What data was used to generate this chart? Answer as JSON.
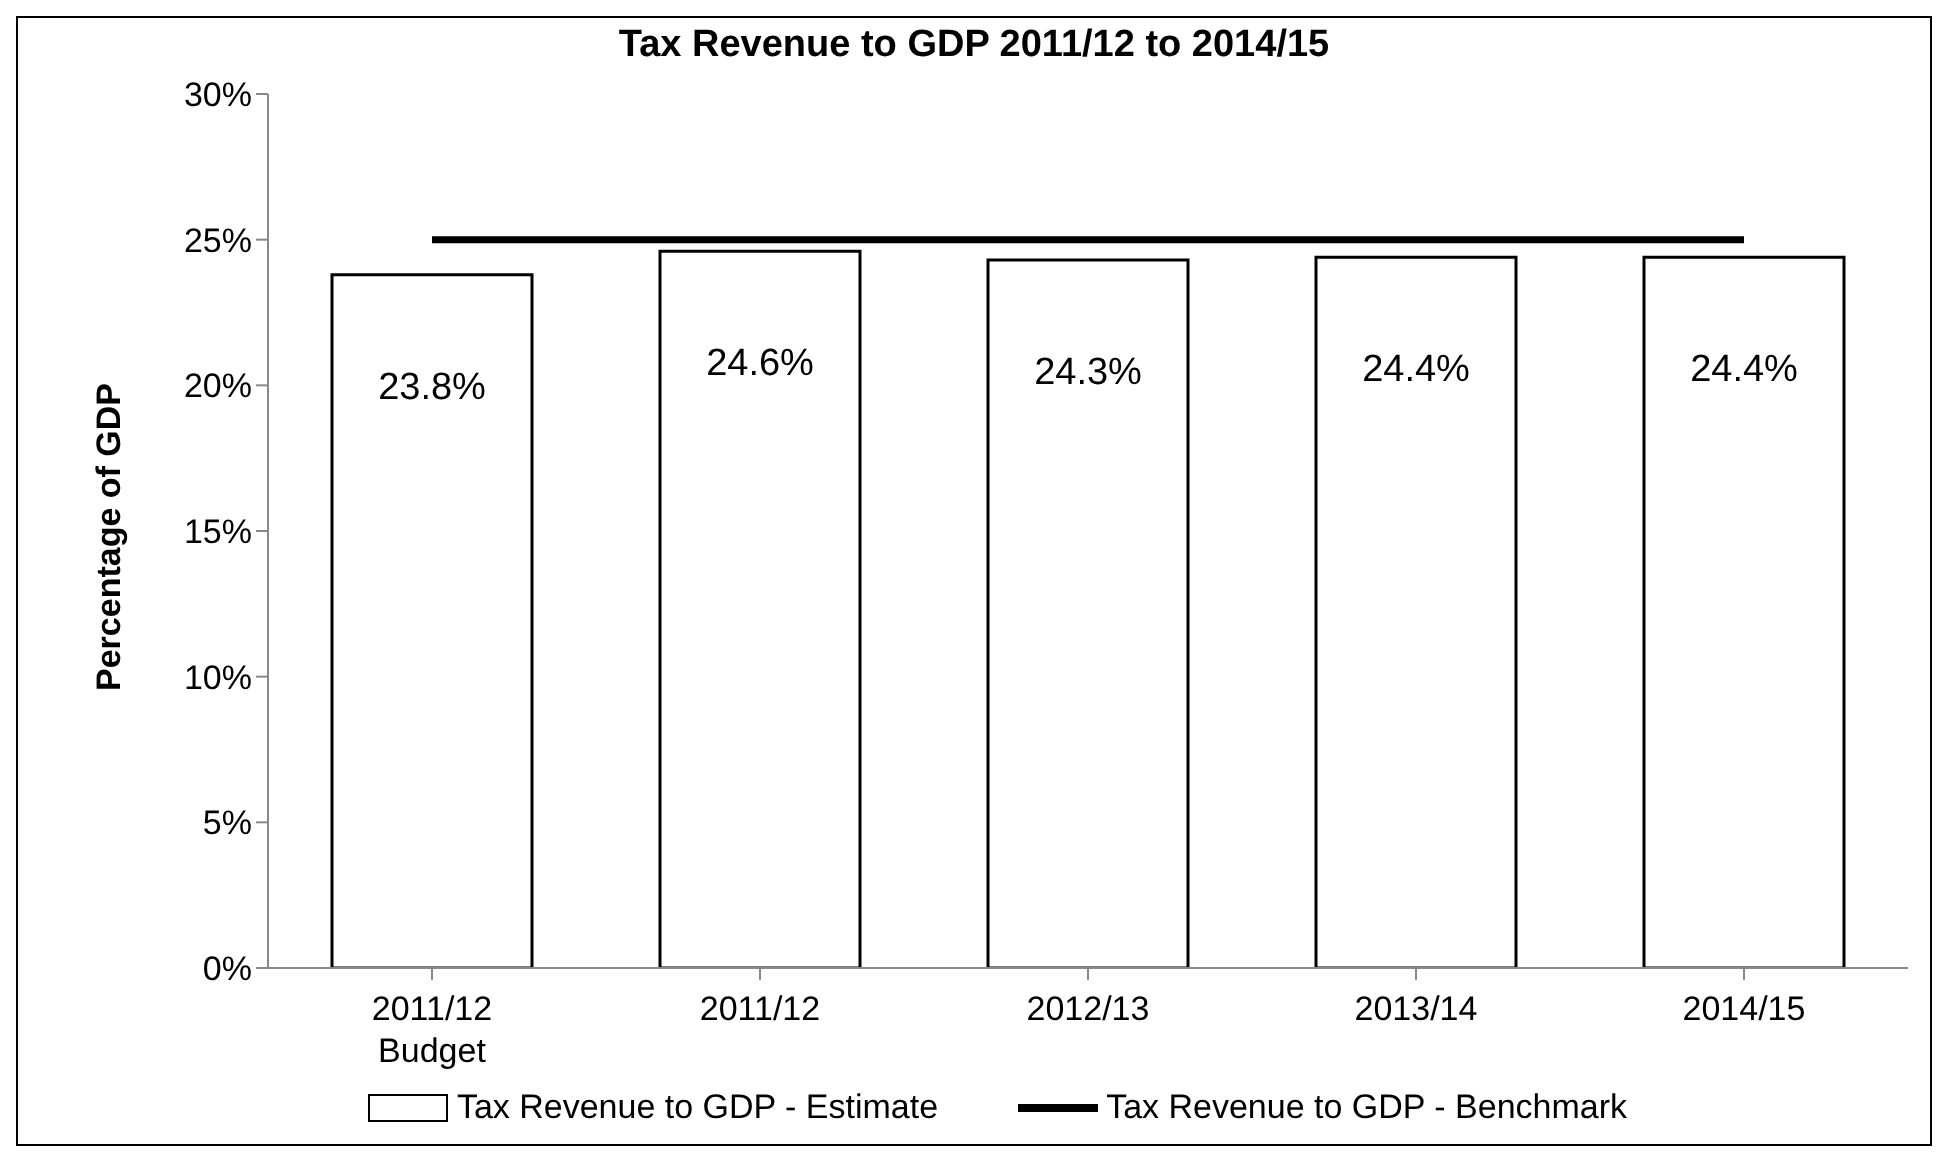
{
  "chart_data": {
    "type": "bar",
    "title": "Tax Revenue to GDP 2011/12 to 2014/15",
    "ylabel": "Percentage of GDP",
    "categories": [
      "2011/12 Budget",
      "2011/12",
      "2012/13",
      "2013/14",
      "2014/15"
    ],
    "series": [
      {
        "name": "Tax Revenue to GDP - Estimate",
        "color": "#ffffff",
        "values": [
          23.8,
          24.6,
          24.3,
          24.4,
          24.4
        ],
        "value_labels": [
          "23.8%",
          "24.6%",
          "24.3%",
          "24.4%",
          "24.4%"
        ]
      },
      {
        "name": "Tax Revenue to GDP - Benchmark",
        "type": "line",
        "color": "#000000",
        "values": [
          25,
          25,
          25,
          25,
          25
        ]
      }
    ],
    "ylim": [
      0,
      30
    ],
    "yticks": [
      {
        "value": 0,
        "label": "0%"
      },
      {
        "value": 5,
        "label": "5%"
      },
      {
        "value": 10,
        "label": "10%"
      },
      {
        "value": 15,
        "label": "15%"
      },
      {
        "value": 20,
        "label": "20%"
      },
      {
        "value": 25,
        "label": "25%"
      },
      {
        "value": 30,
        "label": "30%"
      }
    ],
    "grid": false,
    "legend": "bottom",
    "marker": "none",
    "line_style": "solid"
  }
}
